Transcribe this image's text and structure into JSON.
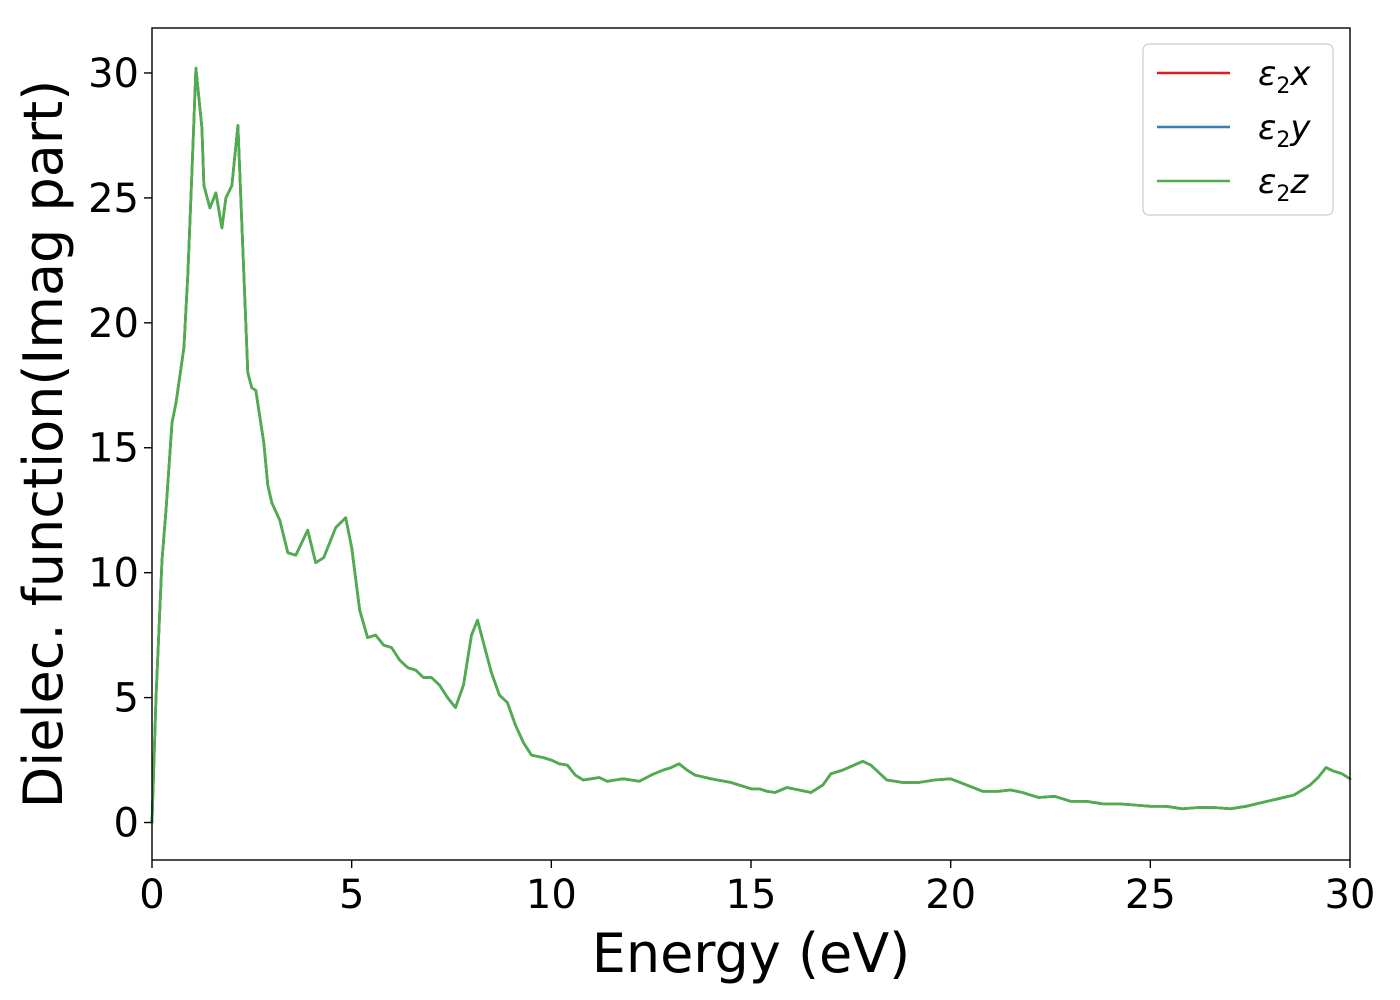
{
  "chart_data": {
    "type": "line",
    "title": "",
    "xlabel": "Energy (eV)",
    "ylabel": "Dielec. function(Imag part)",
    "xlim": [
      0,
      30
    ],
    "ylim": [
      -1.5,
      31.8
    ],
    "xticks": [
      "0",
      "5",
      "10",
      "15",
      "20",
      "25",
      "30"
    ],
    "yticks": [
      "0",
      "5",
      "10",
      "15",
      "20",
      "25",
      "30"
    ],
    "grid": false,
    "legend_position": "top-right",
    "legend": [
      {
        "base": "ε",
        "sub": "2",
        "suffix": "x",
        "color": "#e41a1c"
      },
      {
        "base": "ε",
        "sub": "2",
        "suffix": "y",
        "color": "#377eb8"
      },
      {
        "base": "ε",
        "sub": "2",
        "suffix": "z",
        "color": "#4daf4a"
      }
    ],
    "x": [
      0,
      0.1,
      0.25,
      0.35,
      0.5,
      0.6,
      0.8,
      0.9,
      1.0,
      1.1,
      1.25,
      1.3,
      1.45,
      1.6,
      1.75,
      1.85,
      2.0,
      2.15,
      2.3,
      2.4,
      2.5,
      2.6,
      2.8,
      2.9,
      3.0,
      3.2,
      3.4,
      3.6,
      3.9,
      4.1,
      4.3,
      4.6,
      4.85,
      5.0,
      5.2,
      5.4,
      5.6,
      5.8,
      6.0,
      6.2,
      6.4,
      6.6,
      6.8,
      7.0,
      7.2,
      7.4,
      7.6,
      7.8,
      8.0,
      8.15,
      8.3,
      8.5,
      8.7,
      8.9,
      9.1,
      9.3,
      9.5,
      9.8,
      10.0,
      10.2,
      10.4,
      10.6,
      10.8,
      11.0,
      11.2,
      11.4,
      11.6,
      11.8,
      12.0,
      12.2,
      12.5,
      12.8,
      13.0,
      13.2,
      13.4,
      13.6,
      14.0,
      14.5,
      15.0,
      15.2,
      15.4,
      15.6,
      15.9,
      16.2,
      16.5,
      16.8,
      17.0,
      17.3,
      17.8,
      18.0,
      18.4,
      18.8,
      19.2,
      19.6,
      20.0,
      20.4,
      20.8,
      21.2,
      21.5,
      21.8,
      22.2,
      22.6,
      23.0,
      23.4,
      23.8,
      24.2,
      24.6,
      25.0,
      25.4,
      25.8,
      26.2,
      26.6,
      27.0,
      27.4,
      27.8,
      28.2,
      28.6,
      29.0,
      29.2,
      29.4,
      29.6,
      29.8,
      30.0
    ],
    "series": [
      {
        "name": "ε2x",
        "color": "#e41a1c",
        "values": [
          0,
          5,
          10.5,
          12.5,
          16,
          16.8,
          19,
          22,
          26,
          30.2,
          27.8,
          25.5,
          24.6,
          25.2,
          23.8,
          25,
          25.5,
          27.9,
          22,
          18,
          17.4,
          17.3,
          15.2,
          13.5,
          12.8,
          12.1,
          10.8,
          10.7,
          11.7,
          10.4,
          10.6,
          11.8,
          12.2,
          11,
          8.5,
          7.4,
          7.5,
          7.1,
          7.0,
          6.5,
          6.2,
          6.1,
          5.8,
          5.8,
          5.5,
          5.0,
          4.6,
          5.5,
          7.5,
          8.1,
          7.2,
          6.0,
          5.1,
          4.8,
          3.9,
          3.2,
          2.7,
          2.6,
          2.5,
          2.35,
          2.3,
          1.9,
          1.7,
          1.75,
          1.8,
          1.65,
          1.7,
          1.75,
          1.7,
          1.65,
          1.9,
          2.1,
          2.2,
          2.35,
          2.1,
          1.9,
          1.75,
          1.6,
          1.35,
          1.35,
          1.25,
          1.2,
          1.4,
          1.3,
          1.2,
          1.5,
          1.95,
          2.1,
          2.45,
          2.3,
          1.7,
          1.6,
          1.6,
          1.7,
          1.75,
          1.5,
          1.25,
          1.25,
          1.3,
          1.2,
          1.0,
          1.05,
          0.85,
          0.85,
          0.75,
          0.75,
          0.7,
          0.65,
          0.65,
          0.55,
          0.6,
          0.6,
          0.55,
          0.65,
          0.8,
          0.95,
          1.1,
          1.5,
          1.8,
          2.2,
          2.05,
          1.95,
          1.75
        ]
      },
      {
        "name": "ε2y",
        "color": "#377eb8",
        "values": [
          0,
          5,
          10.5,
          12.5,
          16,
          16.8,
          19,
          22,
          26,
          30.2,
          27.8,
          25.5,
          24.6,
          25.2,
          23.8,
          25,
          25.5,
          27.9,
          22,
          18,
          17.4,
          17.3,
          15.2,
          13.5,
          12.8,
          12.1,
          10.8,
          10.7,
          11.7,
          10.4,
          10.6,
          11.8,
          12.2,
          11,
          8.5,
          7.4,
          7.5,
          7.1,
          7.0,
          6.5,
          6.2,
          6.1,
          5.8,
          5.8,
          5.5,
          5.0,
          4.6,
          5.5,
          7.5,
          8.1,
          7.2,
          6.0,
          5.1,
          4.8,
          3.9,
          3.2,
          2.7,
          2.6,
          2.5,
          2.35,
          2.3,
          1.9,
          1.7,
          1.75,
          1.8,
          1.65,
          1.7,
          1.75,
          1.7,
          1.65,
          1.9,
          2.1,
          2.2,
          2.35,
          2.1,
          1.9,
          1.75,
          1.6,
          1.35,
          1.35,
          1.25,
          1.2,
          1.4,
          1.3,
          1.2,
          1.5,
          1.95,
          2.1,
          2.45,
          2.3,
          1.7,
          1.6,
          1.6,
          1.7,
          1.75,
          1.5,
          1.25,
          1.25,
          1.3,
          1.2,
          1.0,
          1.05,
          0.85,
          0.85,
          0.75,
          0.75,
          0.7,
          0.65,
          0.65,
          0.55,
          0.6,
          0.6,
          0.55,
          0.65,
          0.8,
          0.95,
          1.1,
          1.5,
          1.8,
          2.2,
          2.05,
          1.95,
          1.75
        ]
      },
      {
        "name": "ε2z",
        "color": "#4daf4a",
        "values": [
          0,
          5,
          10.5,
          12.5,
          16,
          16.8,
          19,
          22,
          26,
          30.2,
          27.8,
          25.5,
          24.6,
          25.2,
          23.8,
          25,
          25.5,
          27.9,
          22,
          18,
          17.4,
          17.3,
          15.2,
          13.5,
          12.8,
          12.1,
          10.8,
          10.7,
          11.7,
          10.4,
          10.6,
          11.8,
          12.2,
          11,
          8.5,
          7.4,
          7.5,
          7.1,
          7.0,
          6.5,
          6.2,
          6.1,
          5.8,
          5.8,
          5.5,
          5.0,
          4.6,
          5.5,
          7.5,
          8.1,
          7.2,
          6.0,
          5.1,
          4.8,
          3.9,
          3.2,
          2.7,
          2.6,
          2.5,
          2.35,
          2.3,
          1.9,
          1.7,
          1.75,
          1.8,
          1.65,
          1.7,
          1.75,
          1.7,
          1.65,
          1.9,
          2.1,
          2.2,
          2.35,
          2.1,
          1.9,
          1.75,
          1.6,
          1.35,
          1.35,
          1.25,
          1.2,
          1.4,
          1.3,
          1.2,
          1.5,
          1.95,
          2.1,
          2.45,
          2.3,
          1.7,
          1.6,
          1.6,
          1.7,
          1.75,
          1.5,
          1.25,
          1.25,
          1.3,
          1.2,
          1.0,
          1.05,
          0.85,
          0.85,
          0.75,
          0.75,
          0.7,
          0.65,
          0.65,
          0.55,
          0.6,
          0.6,
          0.55,
          0.65,
          0.8,
          0.95,
          1.1,
          1.5,
          1.8,
          2.2,
          2.05,
          1.95,
          1.75
        ]
      }
    ]
  }
}
